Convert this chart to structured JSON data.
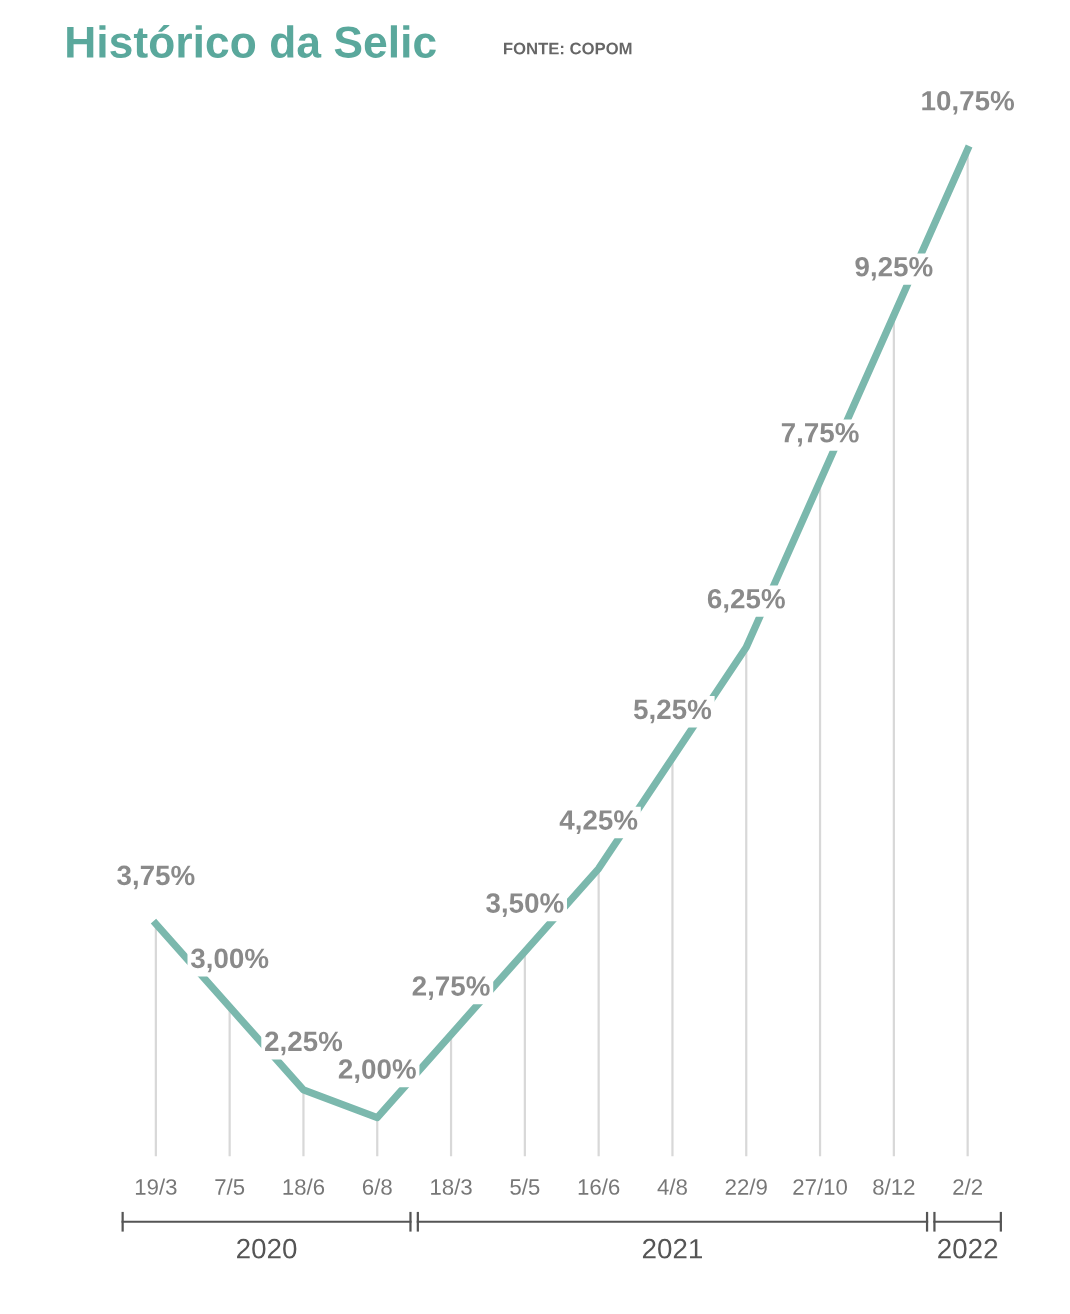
{
  "chart_data": {
    "type": "line",
    "title": "Histórico da Selic",
    "subtitle": "FONTE: COPOM",
    "categories": [
      "19/3",
      "7/5",
      "18/6",
      "6/8",
      "18/3",
      "5/5",
      "16/6",
      "4/8",
      "22/9",
      "27/10",
      "8/12",
      "2/2"
    ],
    "series": [
      {
        "color": "#7bb8ad",
        "values": [
          3.75,
          3.0,
          2.25,
          2.0,
          2.75,
          3.5,
          4.25,
          5.25,
          6.25,
          7.75,
          9.25,
          10.75
        ],
        "value_labels": [
          "3,75%",
          "3,00%",
          "2,25%",
          "2,00%",
          "2,75%",
          "3,50%",
          "4,25%",
          "5,25%",
          "6,25%",
          "7,75%",
          "9,25%",
          "10,75%"
        ]
      }
    ],
    "grid": "x",
    "legend": false,
    "marker": "none",
    "line_style": "solid",
    "annotations": [
      "2020",
      "2021",
      "2022"
    ]
  }
}
